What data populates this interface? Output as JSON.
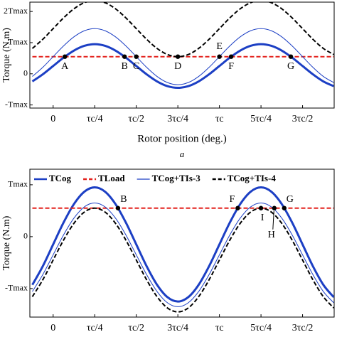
{
  "chart_data": [
    {
      "type": "line",
      "caption": "a",
      "x_label": "Rotor position (deg.)",
      "y_label": "Torque (N.m)",
      "x": [
        -0.125,
        -0.0625,
        0,
        0.0625,
        0.125,
        0.1875,
        0.25,
        0.3125,
        0.375,
        0.4375,
        0.5,
        0.5625,
        0.625,
        0.6875,
        0.75,
        0.8125,
        0.875,
        0.9375,
        1,
        1.0625,
        1.125,
        1.1875,
        1.25,
        1.3125,
        1.375,
        1.4375,
        1.5,
        1.5625,
        1.625,
        1.6875
      ],
      "xlim": [
        -0.14,
        1.69
      ],
      "xticks": [
        0,
        {
          "value": 0.25,
          "label": "τc/4"
        },
        {
          "value": 0.5,
          "label": "τc/2"
        },
        {
          "value": 0.75,
          "label": "3τc/4"
        },
        {
          "value": 1,
          "label": "τc"
        },
        {
          "value": 1.25,
          "label": "5τc/4"
        },
        {
          "value": 1.5,
          "label": "3τc/2"
        }
      ],
      "ylim": [
        -1.1,
        2.3
      ],
      "yticks": [
        {
          "value": -1,
          "label": "-Tmax"
        },
        0,
        {
          "value": 1,
          "label": "Tmax"
        },
        {
          "value": 2,
          "label": "2Tmax"
        }
      ],
      "series": [
        {
          "color": "#1c3fc4",
          "line_width": 3,
          "dash": false,
          "values": [
            -0.245,
            -0.018,
            0.25,
            0.518,
            0.745,
            0.897,
            0.95,
            0.897,
            0.745,
            0.518,
            0.25,
            -0.018,
            -0.245,
            -0.397,
            -0.45,
            -0.397,
            -0.245,
            -0.018,
            0.25,
            0.518,
            0.745,
            0.897,
            0.95,
            0.897,
            0.745,
            0.518,
            0.25,
            -0.018,
            -0.245,
            -0.397
          ]
        },
        {
          "color": "#e3211c",
          "line_width": 2,
          "dash": true,
          "values": [
            0.55,
            0.55,
            0.55,
            0.55,
            0.55,
            0.55,
            0.55,
            0.55,
            0.55,
            0.55,
            0.55,
            0.55,
            0.55,
            0.55,
            0.55,
            0.55,
            0.55,
            0.55,
            0.55,
            0.55,
            0.55,
            0.55,
            0.55,
            0.55,
            0.55,
            0.55,
            0.55,
            0.55,
            0.55,
            0.55
          ]
        },
        {
          "color": "#1c3fc4",
          "line_width": 1,
          "dash": false,
          "values": [
            -0.086,
            0.206,
            0.55,
            0.894,
            1.186,
            1.382,
            1.45,
            1.382,
            1.186,
            0.894,
            0.55,
            0.206,
            -0.086,
            -0.282,
            -0.35,
            -0.282,
            -0.086,
            0.206,
            0.55,
            0.894,
            1.186,
            1.382,
            1.45,
            1.382,
            1.186,
            0.894,
            0.55,
            0.206,
            -0.086,
            -0.282
          ]
        },
        {
          "color": "#000000",
          "line_width": 2,
          "dash": true,
          "values": [
            0.814,
            1.106,
            1.45,
            1.794,
            2.086,
            2.282,
            2.35,
            2.282,
            2.086,
            1.794,
            1.45,
            1.106,
            0.814,
            0.618,
            0.55,
            0.618,
            0.814,
            1.106,
            1.45,
            1.794,
            2.086,
            2.282,
            2.35,
            2.282,
            2.086,
            1.794,
            1.45,
            1.106,
            0.814,
            0.618
          ]
        }
      ],
      "points": [
        {
          "label": "A",
          "x": 0.0705,
          "y": 0.55
        },
        {
          "label": "B",
          "x": 0.4295,
          "y": 0.55
        },
        {
          "label": "C",
          "x": 0.5,
          "y": 0.55
        },
        {
          "label": "D",
          "x": 0.75,
          "y": 0.55
        },
        {
          "label": "E",
          "x": 1,
          "y": 0.55
        },
        {
          "label": "F",
          "x": 1.0705,
          "y": 0.55
        },
        {
          "label": "G",
          "x": 1.4295,
          "y": 0.55
        }
      ]
    },
    {
      "type": "line",
      "y_label": "Torque (N.m)",
      "x": [
        -0.125,
        -0.0625,
        0,
        0.0625,
        0.125,
        0.1875,
        0.25,
        0.3125,
        0.375,
        0.4375,
        0.5,
        0.5625,
        0.625,
        0.6875,
        0.75,
        0.8125,
        0.875,
        0.9375,
        1,
        1.0625,
        1.125,
        1.1875,
        1.25,
        1.3125,
        1.375,
        1.4375,
        1.5,
        1.5625,
        1.625,
        1.6875
      ],
      "xlim": [
        -0.14,
        1.69
      ],
      "xticks": [
        0,
        {
          "value": 0.25,
          "label": "τc/4"
        },
        {
          "value": 0.5,
          "label": "τc/2"
        },
        {
          "value": 0.75,
          "label": "3τc/4"
        },
        {
          "value": 1,
          "label": "τc"
        },
        {
          "value": 1.25,
          "label": "5τc/4"
        },
        {
          "value": 1.5,
          "label": "3τc/2"
        }
      ],
      "ylim": [
        -1.55,
        1.3
      ],
      "yticks": [
        {
          "value": -1,
          "label": "-Tmax"
        },
        0,
        {
          "value": 1,
          "label": "Tmax"
        }
      ],
      "series": [
        {
          "name": "TCog",
          "color": "#1c3fc4",
          "line_width": 3,
          "dash": false,
          "values": [
            -0.928,
            -0.571,
            -0.15,
            0.271,
            0.628,
            0.866,
            0.95,
            0.866,
            0.628,
            0.271,
            -0.15,
            -0.571,
            -0.928,
            -1.166,
            -1.25,
            -1.166,
            -0.928,
            -0.571,
            -0.15,
            0.271,
            0.628,
            0.866,
            0.95,
            0.866,
            0.628,
            0.271,
            -0.15,
            -0.571,
            -0.928,
            -1.166
          ]
        },
        {
          "name": "TLoad",
          "color": "#e3211c",
          "line_width": 2,
          "dash": true,
          "values": [
            0.55,
            0.55,
            0.55,
            0.55,
            0.55,
            0.55,
            0.55,
            0.55,
            0.55,
            0.55,
            0.55,
            0.55,
            0.55,
            0.55,
            0.55,
            0.55,
            0.55,
            0.55,
            0.55,
            0.55,
            0.55,
            0.55,
            0.55,
            0.55,
            0.55,
            0.55,
            0.55,
            0.55,
            0.55,
            0.55
          ]
        },
        {
          "name": "TCog+TIs-3",
          "color": "#1c3fc4",
          "line_width": 1,
          "dash": false,
          "values": [
            -1.057,
            -0.733,
            -0.35,
            0.033,
            0.357,
            0.574,
            0.65,
            0.574,
            0.357,
            0.033,
            -0.35,
            -0.733,
            -1.057,
            -1.274,
            -1.35,
            -1.274,
            -1.057,
            -0.733,
            -0.35,
            0.033,
            0.357,
            0.574,
            0.65,
            0.574,
            0.357,
            0.033,
            -0.35,
            -0.733,
            -1.057,
            -1.274
          ]
        },
        {
          "name": "TCog+TIs-4",
          "color": "#000000",
          "line_width": 2,
          "dash": true,
          "values": [
            -1.157,
            -0.833,
            -0.45,
            -0.067,
            0.257,
            0.474,
            0.55,
            0.474,
            0.257,
            -0.067,
            -0.45,
            -0.833,
            -1.157,
            -1.374,
            -1.45,
            -1.374,
            -1.157,
            -0.833,
            -0.45,
            -0.067,
            0.257,
            0.474,
            0.55,
            0.474,
            0.257,
            -0.067,
            -0.45,
            -0.833,
            -1.157,
            -1.374
          ]
        }
      ],
      "points": [
        {
          "label": "B",
          "x": 0.39,
          "y": 0.55
        },
        {
          "label": "F",
          "x": 1.11,
          "y": 0.55
        },
        {
          "label": "G",
          "x": 1.39,
          "y": 0.55
        },
        {
          "label": "I",
          "x": 1.25,
          "y": 0.55
        },
        {
          "label": "H",
          "x": 1.33,
          "y": 0.55
        }
      ]
    }
  ]
}
